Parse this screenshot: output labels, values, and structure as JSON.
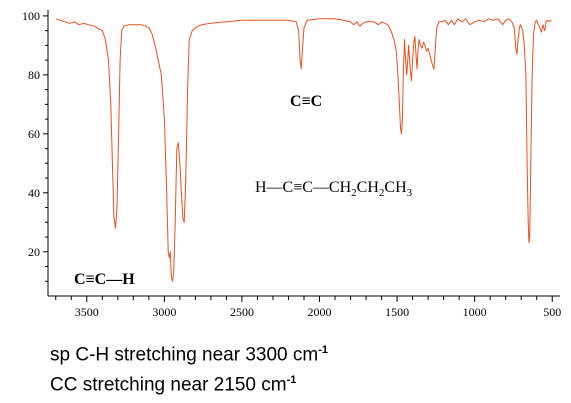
{
  "chart_data": {
    "type": "line",
    "x_axis": {
      "min": 3750,
      "max": 450,
      "reversed": true,
      "ticks": [
        3500,
        3000,
        2500,
        2000,
        1500,
        1000,
        500
      ],
      "tick_labels": [
        "3500",
        "3000",
        "2500",
        "2000",
        "1500",
        "1000",
        "500"
      ]
    },
    "y_axis": {
      "min": 5,
      "max": 102,
      "ticks": [
        20,
        40,
        60,
        80,
        100
      ],
      "tick_labels": [
        "20",
        "40",
        "60",
        "80",
        "100"
      ]
    },
    "grid": false,
    "line_color": "#e8501e",
    "series": [
      {
        "points": [
          [
            3700,
            99
          ],
          [
            3670,
            98.5
          ],
          [
            3640,
            98
          ],
          [
            3610,
            97.5
          ],
          [
            3580,
            98
          ],
          [
            3550,
            97
          ],
          [
            3520,
            97.5
          ],
          [
            3490,
            97
          ],
          [
            3450,
            96.5
          ],
          [
            3420,
            95.5
          ],
          [
            3400,
            95
          ],
          [
            3380,
            92
          ],
          [
            3360,
            85
          ],
          [
            3345,
            70
          ],
          [
            3335,
            50
          ],
          [
            3325,
            32
          ],
          [
            3315,
            28
          ],
          [
            3305,
            35
          ],
          [
            3295,
            60
          ],
          [
            3285,
            85
          ],
          [
            3275,
            95
          ],
          [
            3260,
            96.5
          ],
          [
            3230,
            97
          ],
          [
            3200,
            97
          ],
          [
            3150,
            97
          ],
          [
            3120,
            96.5
          ],
          [
            3100,
            96
          ],
          [
            3080,
            94
          ],
          [
            3060,
            90
          ],
          [
            3040,
            85
          ],
          [
            3020,
            80
          ],
          [
            3000,
            65
          ],
          [
            2985,
            40
          ],
          [
            2975,
            20
          ],
          [
            2968,
            18
          ],
          [
            2962,
            20
          ],
          [
            2955,
            12
          ],
          [
            2948,
            10
          ],
          [
            2940,
            13
          ],
          [
            2930,
            30
          ],
          [
            2920,
            55
          ],
          [
            2910,
            57
          ],
          [
            2900,
            50
          ],
          [
            2890,
            40
          ],
          [
            2880,
            31
          ],
          [
            2872,
            30
          ],
          [
            2862,
            45
          ],
          [
            2850,
            75
          ],
          [
            2840,
            92
          ],
          [
            2820,
            95
          ],
          [
            2800,
            96
          ],
          [
            2760,
            97
          ],
          [
            2700,
            97.5
          ],
          [
            2600,
            98
          ],
          [
            2500,
            98.5
          ],
          [
            2400,
            98.5
          ],
          [
            2300,
            98.5
          ],
          [
            2200,
            98.5
          ],
          [
            2150,
            98
          ],
          [
            2135,
            95
          ],
          [
            2125,
            85
          ],
          [
            2118,
            82
          ],
          [
            2112,
            87
          ],
          [
            2100,
            96
          ],
          [
            2080,
            98.5
          ],
          [
            2000,
            99
          ],
          [
            1900,
            99
          ],
          [
            1850,
            98.5
          ],
          [
            1800,
            98
          ],
          [
            1780,
            97
          ],
          [
            1760,
            98
          ],
          [
            1740,
            96.5
          ],
          [
            1720,
            97.5
          ],
          [
            1700,
            98
          ],
          [
            1650,
            98
          ],
          [
            1620,
            97
          ],
          [
            1600,
            98
          ],
          [
            1560,
            97
          ],
          [
            1540,
            95
          ],
          [
            1520,
            92
          ],
          [
            1505,
            88
          ],
          [
            1495,
            80
          ],
          [
            1485,
            70
          ],
          [
            1478,
            62
          ],
          [
            1472,
            60
          ],
          [
            1466,
            65
          ],
          [
            1460,
            80
          ],
          [
            1452,
            92
          ],
          [
            1445,
            85
          ],
          [
            1438,
            80
          ],
          [
            1432,
            84
          ],
          [
            1426,
            90
          ],
          [
            1420,
            86
          ],
          [
            1414,
            81
          ],
          [
            1408,
            78
          ],
          [
            1400,
            85
          ],
          [
            1392,
            91
          ],
          [
            1385,
            93
          ],
          [
            1378,
            87
          ],
          [
            1372,
            82
          ],
          [
            1365,
            88
          ],
          [
            1358,
            92
          ],
          [
            1350,
            90
          ],
          [
            1340,
            89
          ],
          [
            1330,
            91
          ],
          [
            1320,
            90
          ],
          [
            1310,
            88
          ],
          [
            1300,
            89
          ],
          [
            1290,
            87
          ],
          [
            1280,
            85
          ],
          [
            1270,
            83
          ],
          [
            1262,
            82
          ],
          [
            1255,
            88
          ],
          [
            1245,
            96
          ],
          [
            1230,
            98
          ],
          [
            1210,
            98
          ],
          [
            1190,
            98.5
          ],
          [
            1170,
            97
          ],
          [
            1150,
            98.5
          ],
          [
            1130,
            97
          ],
          [
            1110,
            99
          ],
          [
            1080,
            98
          ],
          [
            1060,
            99
          ],
          [
            1030,
            97
          ],
          [
            1000,
            98
          ],
          [
            970,
            98.5
          ],
          [
            940,
            98
          ],
          [
            910,
            99
          ],
          [
            880,
            98.5
          ],
          [
            850,
            99
          ],
          [
            820,
            97
          ],
          [
            800,
            98.5
          ],
          [
            780,
            99
          ],
          [
            760,
            98
          ],
          [
            745,
            96
          ],
          [
            735,
            89
          ],
          [
            727,
            87
          ],
          [
            720,
            92
          ],
          [
            712,
            96
          ],
          [
            705,
            97
          ],
          [
            690,
            95
          ],
          [
            680,
            90
          ],
          [
            670,
            80
          ],
          [
            662,
            50
          ],
          [
            655,
            30
          ],
          [
            650,
            23
          ],
          [
            645,
            25
          ],
          [
            638,
            50
          ],
          [
            630,
            80
          ],
          [
            620,
            94
          ],
          [
            610,
            98
          ],
          [
            600,
            98.5
          ],
          [
            590,
            97
          ],
          [
            580,
            96
          ],
          [
            570,
            94.5
          ],
          [
            560,
            97
          ],
          [
            550,
            95
          ],
          [
            545,
            96
          ],
          [
            540,
            98
          ],
          [
            530,
            98.5
          ],
          [
            520,
            98
          ],
          [
            510,
            98.5
          ],
          [
            505,
            98.5
          ]
        ]
      }
    ],
    "annotations": {
      "cc_label": "C≡C",
      "molecule_h": "H—C≡C—CH",
      "molecule_sub1": "2",
      "molecule_mid": "CH",
      "molecule_sub2": "2",
      "molecule_ch": "CH",
      "molecule_sub3": "3",
      "cch_label": "C≡C—H"
    }
  },
  "captions": {
    "line1_text": "sp C-H stretching near 3300 cm",
    "line1_sup": "-1",
    "line2_text": "CC stretching near 2150 cm",
    "line2_sup": "-1"
  }
}
